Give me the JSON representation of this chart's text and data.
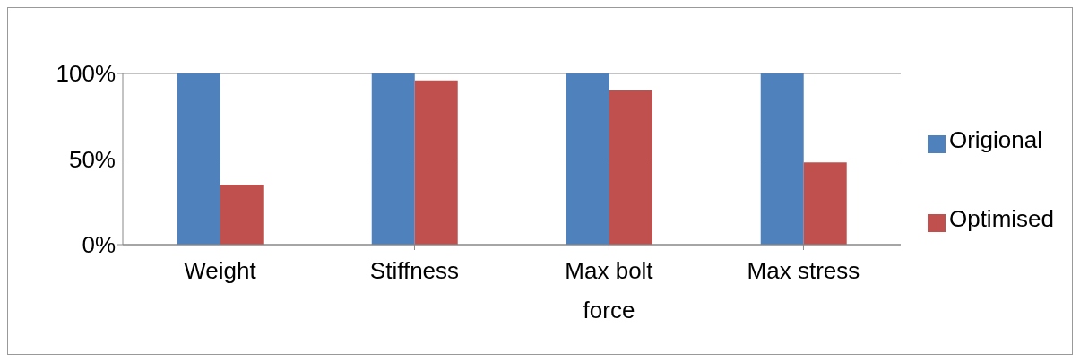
{
  "chart_data": {
    "type": "bar",
    "categories": [
      "Weight",
      "Stiffness",
      "Max bolt force",
      "Max stress"
    ],
    "series": [
      {
        "name": "Origional",
        "color": "#4f81bd",
        "values": [
          100,
          100,
          100,
          100
        ]
      },
      {
        "name": "Optimised",
        "color": "#c0504d",
        "values": [
          35,
          96,
          90,
          48
        ]
      }
    ],
    "ylim": [
      0,
      100
    ],
    "yticks": [
      {
        "value": 0,
        "label": "0%"
      },
      {
        "value": 50,
        "label": "50%"
      },
      {
        "value": 100,
        "label": "100%"
      }
    ],
    "grid": "y",
    "legend": "right"
  }
}
